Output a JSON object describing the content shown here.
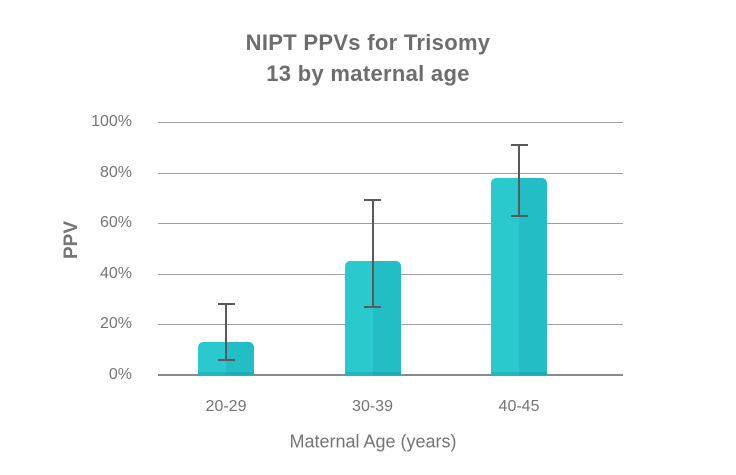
{
  "chart": {
    "title_line1": "NIPT PPVs for Trisomy",
    "title_line2": "13 by maternal age"
  },
  "chart_data": {
    "type": "bar",
    "title": "NIPT PPVs for Trisomy 13 by maternal age",
    "categories": [
      "20-29",
      "30-39",
      "40-45"
    ],
    "values": [
      13,
      45,
      78
    ],
    "error_low": [
      6,
      27,
      63
    ],
    "error_high": [
      28,
      69,
      91
    ],
    "xlabel": "Maternal Age (years)",
    "ylabel": "PPV",
    "ylim": [
      0,
      100
    ],
    "yticks": [
      0,
      20,
      40,
      60,
      80,
      100
    ],
    "ytick_suffix": "%",
    "grid": true,
    "legend": false,
    "colors": {
      "bar_left": "#29c9cd",
      "bar_right": "#22bdc5",
      "error_bar": "#58595b",
      "gridline": "#a0a0a0",
      "axis_line": "#8a8a8a",
      "title_text": "#6d6d6d",
      "label_text": "#757575",
      "background": "#ffffff"
    }
  }
}
